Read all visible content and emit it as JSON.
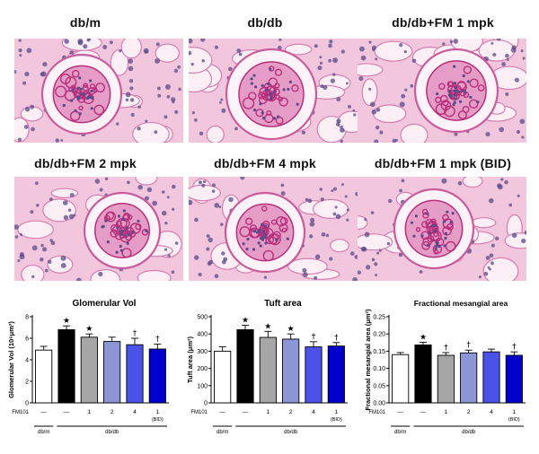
{
  "panels": [
    {
      "label": "db/m"
    },
    {
      "label": "db/db"
    },
    {
      "label": "db/db+FM  1 mpk"
    },
    {
      "label": "db/db+FM  2 mpk"
    },
    {
      "label": "db/db+FM  4 mpk"
    },
    {
      "label": "db/db+FM  1 mpk (BID)"
    }
  ],
  "colors": {
    "stain_bg": "#f2c6dd",
    "stain_dark": "#b8307c",
    "nuclei": "#5a4a8a",
    "series": [
      "#ffffff",
      "#000000",
      "#a6a6a6",
      "#8e95d6",
      "#4a52ea",
      "#0000cc"
    ]
  },
  "chart_data": [
    {
      "type": "bar",
      "title": "Glomerular Vol",
      "ylabel": "Glomerular Vol (10⁶μm³)",
      "ylim": [
        0,
        8
      ],
      "yticks": [
        "0",
        "2",
        "4",
        "6",
        "8"
      ],
      "treatment_label": "FM101",
      "categories": [
        "—",
        "—",
        "1",
        "2",
        "4",
        "1"
      ],
      "category_sub": [
        "",
        "",
        "",
        "",
        "",
        "(BID)"
      ],
      "groups": [
        "db/m",
        "db/db"
      ],
      "values": [
        4.9,
        6.8,
        6.1,
        5.7,
        5.4,
        5.0
      ],
      "errors": [
        0.35,
        0.35,
        0.3,
        0.4,
        0.6,
        0.45
      ],
      "marks": [
        "",
        "★",
        "★",
        "",
        "†",
        "†"
      ]
    },
    {
      "type": "bar",
      "title": "Tuft area",
      "ylabel": "Tuft area (μm²)",
      "ylim": [
        0,
        500
      ],
      "yticks": [
        "0",
        "100",
        "200",
        "300",
        "400",
        "500"
      ],
      "treatment_label": "FM101",
      "categories": [
        "—",
        "—",
        "1",
        "2",
        "4",
        "1"
      ],
      "category_sub": [
        "",
        "",
        "",
        "",
        "",
        "(BID)"
      ],
      "groups": [
        "db/m",
        "db/db"
      ],
      "values": [
        300,
        425,
        380,
        370,
        325,
        330
      ],
      "errors": [
        25,
        25,
        35,
        30,
        30,
        20
      ],
      "marks": [
        "",
        "★",
        "★",
        "★",
        "†",
        "†"
      ]
    },
    {
      "type": "bar",
      "title": "Fractional mesangial area",
      "ylabel": "Fractional mesangial area (μm²)",
      "ylim": [
        0,
        0.25
      ],
      "yticks": [
        "0.00",
        "0.05",
        "0.10",
        "0.15",
        "0.20",
        "0.25"
      ],
      "treatment_label": "FM101",
      "categories": [
        "—",
        "—",
        "1",
        "2",
        "4",
        "1"
      ],
      "category_sub": [
        "",
        "",
        "",
        "",
        "",
        "(BID)"
      ],
      "groups": [
        "db/m",
        "db/db"
      ],
      "values": [
        0.14,
        0.168,
        0.138,
        0.145,
        0.148,
        0.138
      ],
      "errors": [
        0.006,
        0.008,
        0.008,
        0.008,
        0.008,
        0.01
      ],
      "marks": [
        "",
        "★",
        "†",
        "†",
        "",
        "†"
      ]
    }
  ]
}
